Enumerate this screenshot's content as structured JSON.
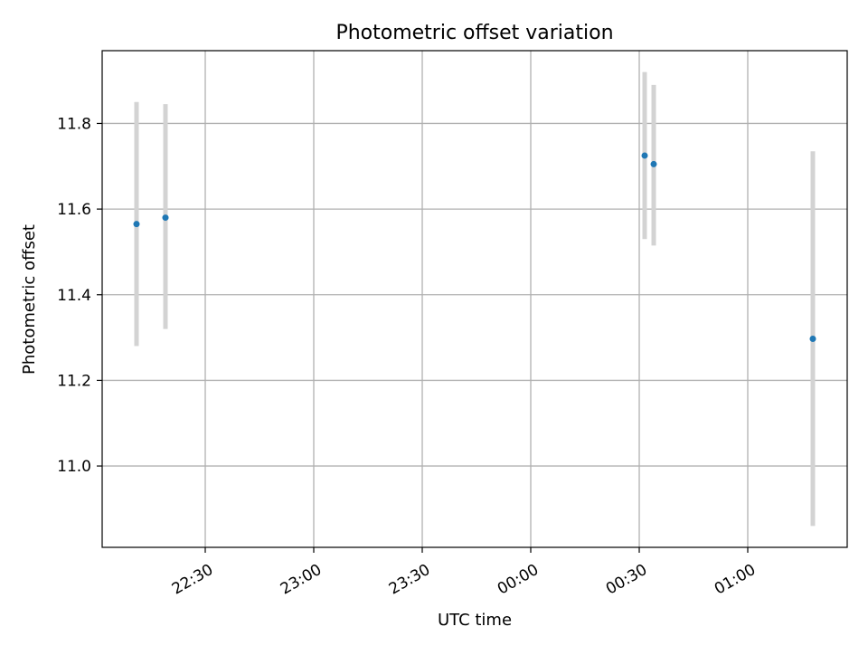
{
  "chart_data": {
    "type": "scatter",
    "title": "Photometric offset variation",
    "xlabel": "UTC time",
    "ylabel": "Photometric offset",
    "x_ticks": [
      "22:30",
      "23:00",
      "23:30",
      "00:00",
      "00:30",
      "01:00"
    ],
    "y_ticks": [
      "11.0",
      "11.2",
      "11.4",
      "11.6",
      "11.8"
    ],
    "xlim": [
      "2000-01-01T22:01:30",
      "2000-01-02T01:27:30"
    ],
    "ylim": [
      10.81,
      11.97
    ],
    "grid": true,
    "legend": "none",
    "series": [
      {
        "points": [
          {
            "x": "2000-01-01T22:11:00",
            "y": 11.565,
            "yerr_low": 11.28,
            "yerr_high": 11.85
          },
          {
            "x": "2000-01-01T22:19:00",
            "y": 11.58,
            "yerr_low": 11.32,
            "yerr_high": 11.845
          },
          {
            "x": "2000-01-02T00:31:30",
            "y": 11.725,
            "yerr_low": 11.53,
            "yerr_high": 11.92
          },
          {
            "x": "2000-01-02T00:34:00",
            "y": 11.705,
            "yerr_low": 11.515,
            "yerr_high": 11.89
          },
          {
            "x": "2000-01-02T01:18:00",
            "y": 11.297,
            "yerr_low": 10.86,
            "yerr_high": 11.735
          }
        ]
      }
    ],
    "colors": {
      "marker": "#1f77b4",
      "errorbar": "#d3d3d3",
      "grid": "#b0b0b0",
      "axes": "#000000"
    }
  }
}
